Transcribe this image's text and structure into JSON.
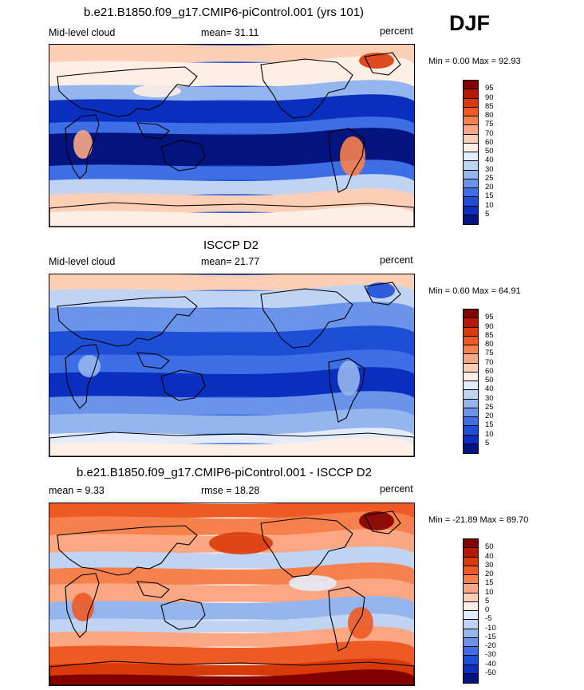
{
  "season": "DJF",
  "panels": [
    {
      "title": "b.e21.B1850.f09_g17.CMIP6-piControl.001 (yrs 101)",
      "left_label": "Mid-level cloud",
      "mean_text": "mean=  31.11",
      "units": "percent",
      "minmax_text": "Min =   0.00 Max =  92.93",
      "map_style": "model",
      "colorbar": {
        "labels": [
          "95",
          "90",
          "85",
          "80",
          "75",
          "70",
          "60",
          "50",
          "40",
          "30",
          "25",
          "20",
          "15",
          "10",
          "5"
        ],
        "colors": [
          "#800000",
          "#b41a03",
          "#d93a0a",
          "#ee5a24",
          "#f7814d",
          "#fba783",
          "#fdcfb6",
          "#fdeee6",
          "#e3ecfa",
          "#bfd3f3",
          "#95b5ee",
          "#6a93ea",
          "#3d6ee6",
          "#1d4ed6",
          "#0a2fbf",
          "#03147e"
        ]
      }
    },
    {
      "title": "ISCCP D2",
      "left_label": "Mid-level cloud",
      "mean_text": "mean=  21.77",
      "units": "percent",
      "minmax_text": "Min =   0.60 Max =  64.91",
      "map_style": "obs",
      "colorbar": {
        "labels": [
          "95",
          "90",
          "85",
          "80",
          "75",
          "70",
          "60",
          "50",
          "40",
          "30",
          "25",
          "20",
          "15",
          "10",
          "5"
        ],
        "colors": [
          "#800000",
          "#b41a03",
          "#d93a0a",
          "#ee5a24",
          "#f7814d",
          "#fba783",
          "#fdcfb6",
          "#fdeee6",
          "#e3ecfa",
          "#bfd3f3",
          "#95b5ee",
          "#6a93ea",
          "#3d6ee6",
          "#1d4ed6",
          "#0a2fbf",
          "#03147e"
        ]
      }
    },
    {
      "title": "b.e21.B1850.f09_g17.CMIP6-piControl.001 - ISCCP D2",
      "left_label": "mean =   9.33",
      "mean_text": "rmse =  18.28",
      "units": "percent",
      "minmax_text": "Min = -21.89 Max =  89.70",
      "map_style": "diff",
      "colorbar": {
        "labels": [
          "50",
          "40",
          "30",
          "20",
          "15",
          "10",
          "5",
          "0",
          "-5",
          "-10",
          "-15",
          "-20",
          "-30",
          "-40",
          "-50"
        ],
        "colors": [
          "#800000",
          "#b41a03",
          "#d93a0a",
          "#ee5a24",
          "#f7814d",
          "#fba783",
          "#fdcfb6",
          "#fdeee6",
          "#e3ecfa",
          "#bfd3f3",
          "#95b5ee",
          "#6a93ea",
          "#3d6ee6",
          "#1d4ed6",
          "#0a2fbf",
          "#03147e"
        ]
      }
    }
  ]
}
